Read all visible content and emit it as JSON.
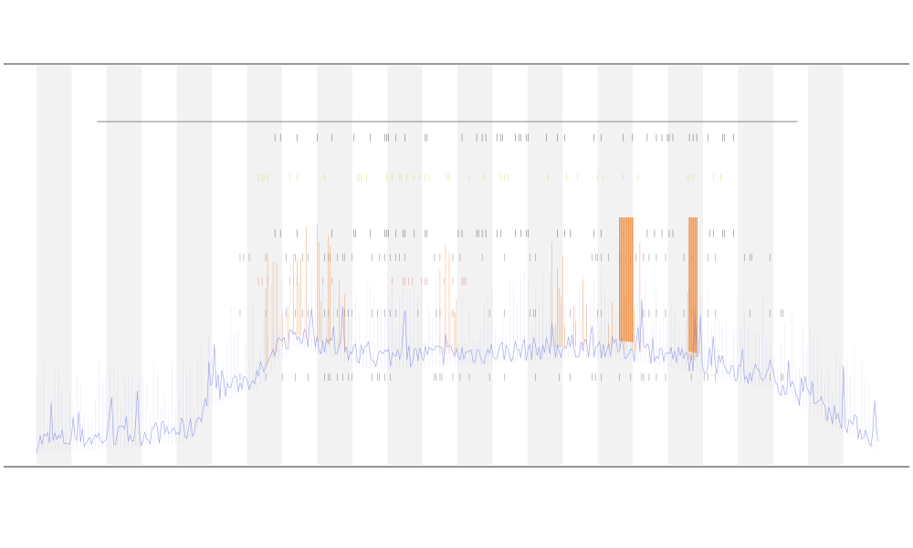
{
  "chart_data": {
    "type": "line",
    "title_lines": [
      "",
      "",
      ""
    ],
    "xlabel": "",
    "ylabel": "",
    "x_tick_labels": [],
    "legend": {
      "placement": "top-left",
      "entries": []
    },
    "grid": false,
    "band_shading": true,
    "band_count": 12,
    "x_count": 460,
    "series": [
      {
        "kind": "coverage",
        "color": "#7b82e8",
        "profile": [
          [
            0,
            0.06
          ],
          [
            40,
            0.07
          ],
          [
            85,
            0.09
          ],
          [
            95,
            0.18
          ],
          [
            120,
            0.22
          ],
          [
            140,
            0.33
          ],
          [
            180,
            0.27
          ],
          [
            240,
            0.28
          ],
          [
            300,
            0.3
          ],
          [
            340,
            0.28
          ],
          [
            400,
            0.22
          ],
          [
            445,
            0.1
          ],
          [
            460,
            0.06
          ]
        ]
      },
      {
        "kind": "spikes",
        "color": "#f07a1e",
        "segments": [
          [
            120,
            170
          ],
          [
            220,
            230
          ],
          [
            280,
            300
          ],
          [
            310,
            330
          ],
          [
            355,
            360
          ]
        ],
        "heavy": [
          [
            318,
            325
          ],
          [
            356,
            360
          ]
        ]
      }
    ],
    "mark_columns": [
      {
        "range": [
          110,
          420
        ],
        "color": "#555555",
        "rows": [
          0.22,
          0.38,
          0.52
        ]
      },
      {
        "range": [
          120,
          240
        ],
        "color": "#e06060",
        "rows": [
          0.46
        ]
      },
      {
        "range": [
          120,
          380
        ],
        "color": "#d6d23a",
        "rows": [
          0.72
        ]
      },
      {
        "range": [
          120,
          380
        ],
        "color": "#222222",
        "rows": [
          0.58,
          0.82
        ]
      }
    ],
    "reference_line": {
      "from": 33,
      "to": 415,
      "level": 0.86
    }
  }
}
